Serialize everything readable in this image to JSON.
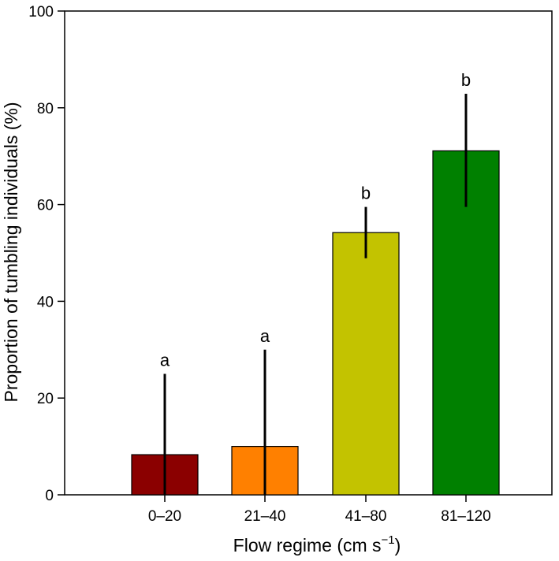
{
  "chart_data": {
    "type": "bar",
    "categories": [
      "0–20",
      "21–40",
      "41–80",
      "81–120"
    ],
    "values": [
      8.3,
      10.0,
      54.2,
      71.1
    ],
    "error_upper": [
      25.0,
      30.0,
      59.5,
      82.9
    ],
    "error_lower": [
      0.0,
      0.0,
      48.9,
      59.5
    ],
    "significance_letters": [
      "a",
      "a",
      "b",
      "b"
    ],
    "colors": [
      "#8b0000",
      "#ff8000",
      "#c3c300",
      "#008000"
    ],
    "xlabel_main": "Flow regime (cm s",
    "xlabel_sup": "−1",
    "xlabel_close": ")",
    "ylabel": "Proportion of tumbling individuals (%)",
    "yticks": [
      0,
      20,
      40,
      60,
      80,
      100
    ],
    "ylim": [
      0,
      100
    ],
    "grid": false,
    "legend": false
  }
}
